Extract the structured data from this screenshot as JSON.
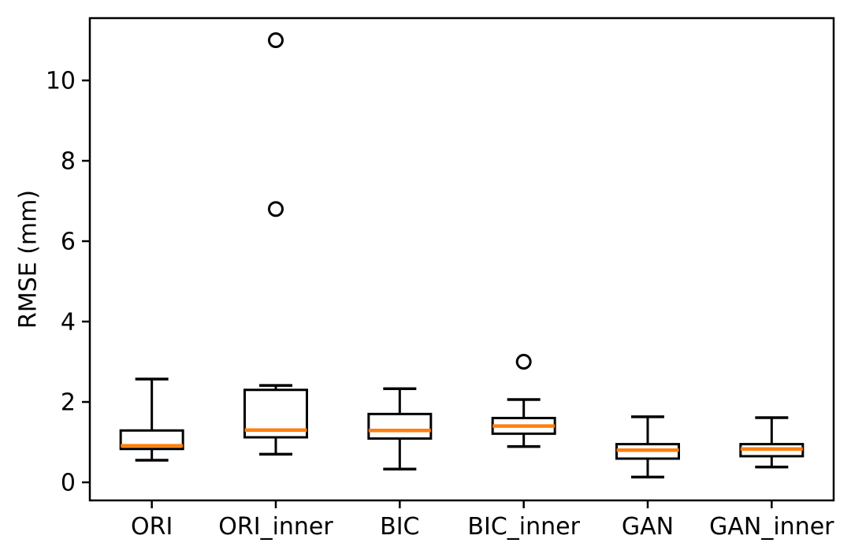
{
  "chart_data": {
    "type": "boxplot",
    "title": "",
    "xlabel": "",
    "ylabel": "RMSE (mm)",
    "categories": [
      "ORI",
      "ORI_inner",
      "BIC",
      "BIC_inner",
      "GAN",
      "GAN_inner"
    ],
    "yticks": [
      0,
      2,
      4,
      6,
      8,
      10
    ],
    "ylim": [
      -0.45,
      11.55
    ],
    "grid": false,
    "legend": false,
    "series": [
      {
        "name": "ORI",
        "whislo": 0.55,
        "q1": 0.83,
        "med": 0.91,
        "q3": 1.29,
        "whishi": 2.57,
        "fliers": []
      },
      {
        "name": "ORI_inner",
        "whislo": 0.7,
        "q1": 1.12,
        "med": 1.3,
        "q3": 2.3,
        "whishi": 2.41,
        "fliers": [
          6.8,
          11.0
        ]
      },
      {
        "name": "BIC",
        "whislo": 0.33,
        "q1": 1.09,
        "med": 1.29,
        "q3": 1.7,
        "whishi": 2.33,
        "fliers": []
      },
      {
        "name": "BIC_inner",
        "whislo": 0.89,
        "q1": 1.21,
        "med": 1.4,
        "q3": 1.6,
        "whishi": 2.06,
        "fliers": [
          3.0
        ]
      },
      {
        "name": "GAN",
        "whislo": 0.13,
        "q1": 0.59,
        "med": 0.8,
        "q3": 0.95,
        "whishi": 1.63,
        "fliers": []
      },
      {
        "name": "GAN_inner",
        "whislo": 0.38,
        "q1": 0.65,
        "med": 0.83,
        "q3": 0.95,
        "whishi": 1.61,
        "fliers": []
      }
    ],
    "colors": {
      "box": "#000000",
      "median": "#ff7f0e",
      "text": "#000000",
      "background": "#ffffff"
    }
  }
}
